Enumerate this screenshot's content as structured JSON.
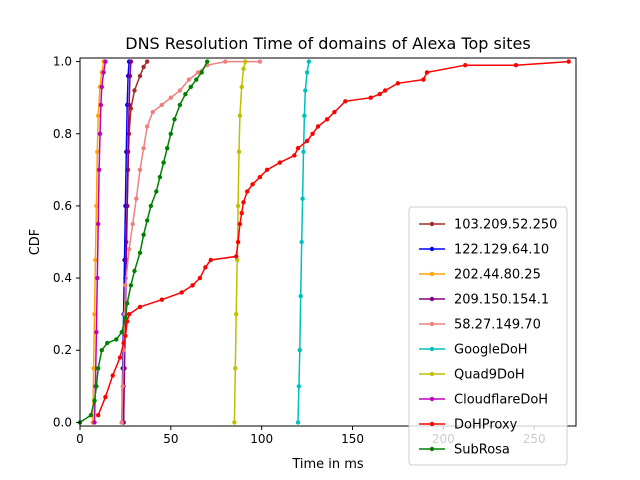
{
  "chart_data": {
    "type": "line",
    "title": "DNS Resolution Time of domains of Alexa Top sites",
    "xlabel": "Time in ms",
    "ylabel": "CDF",
    "xlim": [
      0,
      273
    ],
    "ylim": [
      -0.01,
      1.01
    ],
    "xticks": [
      "0",
      "50",
      "100",
      "150",
      "200",
      "250"
    ],
    "yticks": [
      "0.0",
      "0.2",
      "0.4",
      "0.6",
      "0.8",
      "1.0"
    ],
    "grid": false,
    "legend_position": "lower-right",
    "series": [
      {
        "name": "103.209.52.250",
        "color": "#a52a2a",
        "points": [
          [
            24,
            0
          ],
          [
            24,
            0.1
          ],
          [
            24.5,
            0.25
          ],
          [
            25,
            0.4
          ],
          [
            25.5,
            0.5
          ],
          [
            26,
            0.6
          ],
          [
            26.5,
            0.7
          ],
          [
            27,
            0.8
          ],
          [
            28,
            0.87
          ],
          [
            30,
            0.92
          ],
          [
            33,
            0.96
          ],
          [
            35,
            0.985
          ],
          [
            37,
            1.0
          ]
        ]
      },
      {
        "name": "122.129.64.10",
        "color": "#0000ff",
        "points": [
          [
            23,
            0
          ],
          [
            23.5,
            0.15
          ],
          [
            24,
            0.3
          ],
          [
            24.5,
            0.45
          ],
          [
            25,
            0.6
          ],
          [
            25.5,
            0.75
          ],
          [
            26,
            0.88
          ],
          [
            26.5,
            0.96
          ],
          [
            27,
            1.0
          ]
        ]
      },
      {
        "name": "202.44.80.25",
        "color": "#ffa500",
        "points": [
          [
            7,
            0
          ],
          [
            7.5,
            0.15
          ],
          [
            8,
            0.3
          ],
          [
            8.5,
            0.45
          ],
          [
            9,
            0.6
          ],
          [
            9.5,
            0.75
          ],
          [
            10,
            0.85
          ],
          [
            11,
            0.93
          ],
          [
            12,
            0.97
          ],
          [
            13,
            1.0
          ]
        ]
      },
      {
        "name": "209.150.154.1",
        "color": "#800080",
        "points": [
          [
            24,
            0
          ],
          [
            24.5,
            0.15
          ],
          [
            25,
            0.3
          ],
          [
            25.5,
            0.45
          ],
          [
            26,
            0.6
          ],
          [
            26.5,
            0.75
          ],
          [
            27,
            0.88
          ],
          [
            27.5,
            0.96
          ],
          [
            28,
            1.0
          ]
        ]
      },
      {
        "name": "58.27.149.70",
        "color": "#f08080",
        "points": [
          [
            23,
            0
          ],
          [
            23.5,
            0.1
          ],
          [
            24,
            0.2
          ],
          [
            24.5,
            0.3
          ],
          [
            25,
            0.38
          ],
          [
            27,
            0.48
          ],
          [
            29,
            0.55
          ],
          [
            31,
            0.62
          ],
          [
            33,
            0.7
          ],
          [
            35,
            0.76
          ],
          [
            37,
            0.82
          ],
          [
            40,
            0.86
          ],
          [
            45,
            0.88
          ],
          [
            50,
            0.9
          ],
          [
            55,
            0.92
          ],
          [
            60,
            0.95
          ],
          [
            65,
            0.97
          ],
          [
            70,
            0.99
          ],
          [
            80,
            1.0
          ],
          [
            99,
            1.0
          ]
        ]
      },
      {
        "name": "GoogleDoH",
        "color": "#00bfbf",
        "points": [
          [
            120,
            0
          ],
          [
            120.5,
            0.1
          ],
          [
            121,
            0.2
          ],
          [
            121.5,
            0.35
          ],
          [
            122,
            0.5
          ],
          [
            122.5,
            0.62
          ],
          [
            123,
            0.75
          ],
          [
            123.5,
            0.85
          ],
          [
            124,
            0.92
          ],
          [
            125,
            0.97
          ],
          [
            126,
            1.0
          ]
        ]
      },
      {
        "name": "Quad9DoH",
        "color": "#bfbf00",
        "points": [
          [
            85,
            0
          ],
          [
            85.5,
            0.15
          ],
          [
            86,
            0.3
          ],
          [
            86.5,
            0.45
          ],
          [
            87,
            0.6
          ],
          [
            87.5,
            0.75
          ],
          [
            88,
            0.85
          ],
          [
            89,
            0.93
          ],
          [
            90,
            0.98
          ],
          [
            91,
            1.0
          ]
        ]
      },
      {
        "name": "CloudflareDoH",
        "color": "#bf00bf",
        "points": [
          [
            8,
            0
          ],
          [
            8.5,
            0.1
          ],
          [
            9,
            0.25
          ],
          [
            9.5,
            0.4
          ],
          [
            10,
            0.55
          ],
          [
            10.5,
            0.7
          ],
          [
            11,
            0.8
          ],
          [
            11.5,
            0.88
          ],
          [
            12,
            0.93
          ],
          [
            13,
            0.97
          ],
          [
            14,
            1.0
          ]
        ]
      },
      {
        "name": "DoHProxy",
        "color": "#ff0000",
        "points": [
          [
            10,
            0.02
          ],
          [
            14,
            0.07
          ],
          [
            18,
            0.13
          ],
          [
            22,
            0.18
          ],
          [
            24,
            0.22
          ],
          [
            25,
            0.24
          ],
          [
            26,
            0.28
          ],
          [
            27,
            0.3
          ],
          [
            33,
            0.32
          ],
          [
            45,
            0.34
          ],
          [
            56,
            0.36
          ],
          [
            62,
            0.38
          ],
          [
            66,
            0.4
          ],
          [
            69,
            0.43
          ],
          [
            72,
            0.45
          ],
          [
            86,
            0.46
          ],
          [
            87,
            0.5
          ],
          [
            88,
            0.55
          ],
          [
            89,
            0.58
          ],
          [
            90,
            0.61
          ],
          [
            92,
            0.64
          ],
          [
            95,
            0.66
          ],
          [
            99,
            0.68
          ],
          [
            103,
            0.7
          ],
          [
            110,
            0.72
          ],
          [
            118,
            0.74
          ],
          [
            120,
            0.76
          ],
          [
            125,
            0.78
          ],
          [
            128,
            0.8
          ],
          [
            131,
            0.82
          ],
          [
            136,
            0.84
          ],
          [
            140,
            0.86
          ],
          [
            146,
            0.89
          ],
          [
            160,
            0.9
          ],
          [
            165,
            0.91
          ],
          [
            168,
            0.92
          ],
          [
            175,
            0.94
          ],
          [
            189,
            0.95
          ],
          [
            191,
            0.97
          ],
          [
            212,
            0.99
          ],
          [
            240,
            0.99
          ],
          [
            269,
            1.0
          ]
        ]
      },
      {
        "name": "SubRosa",
        "color": "#008000",
        "points": [
          [
            0,
            0
          ],
          [
            6,
            0.02
          ],
          [
            8,
            0.06
          ],
          [
            9,
            0.1
          ],
          [
            10,
            0.15
          ],
          [
            12,
            0.2
          ],
          [
            15,
            0.22
          ],
          [
            20,
            0.23
          ],
          [
            23,
            0.25
          ],
          [
            25,
            0.29
          ],
          [
            26,
            0.33
          ],
          [
            28,
            0.38
          ],
          [
            30,
            0.42
          ],
          [
            33,
            0.47
          ],
          [
            35,
            0.52
          ],
          [
            37,
            0.56
          ],
          [
            39,
            0.6
          ],
          [
            42,
            0.64
          ],
          [
            44,
            0.68
          ],
          [
            46,
            0.72
          ],
          [
            48,
            0.76
          ],
          [
            50,
            0.8
          ],
          [
            52,
            0.84
          ],
          [
            55,
            0.88
          ],
          [
            58,
            0.91
          ],
          [
            61,
            0.93
          ],
          [
            64,
            0.95
          ],
          [
            67,
            0.97
          ],
          [
            70,
            1.0
          ]
        ]
      }
    ]
  }
}
